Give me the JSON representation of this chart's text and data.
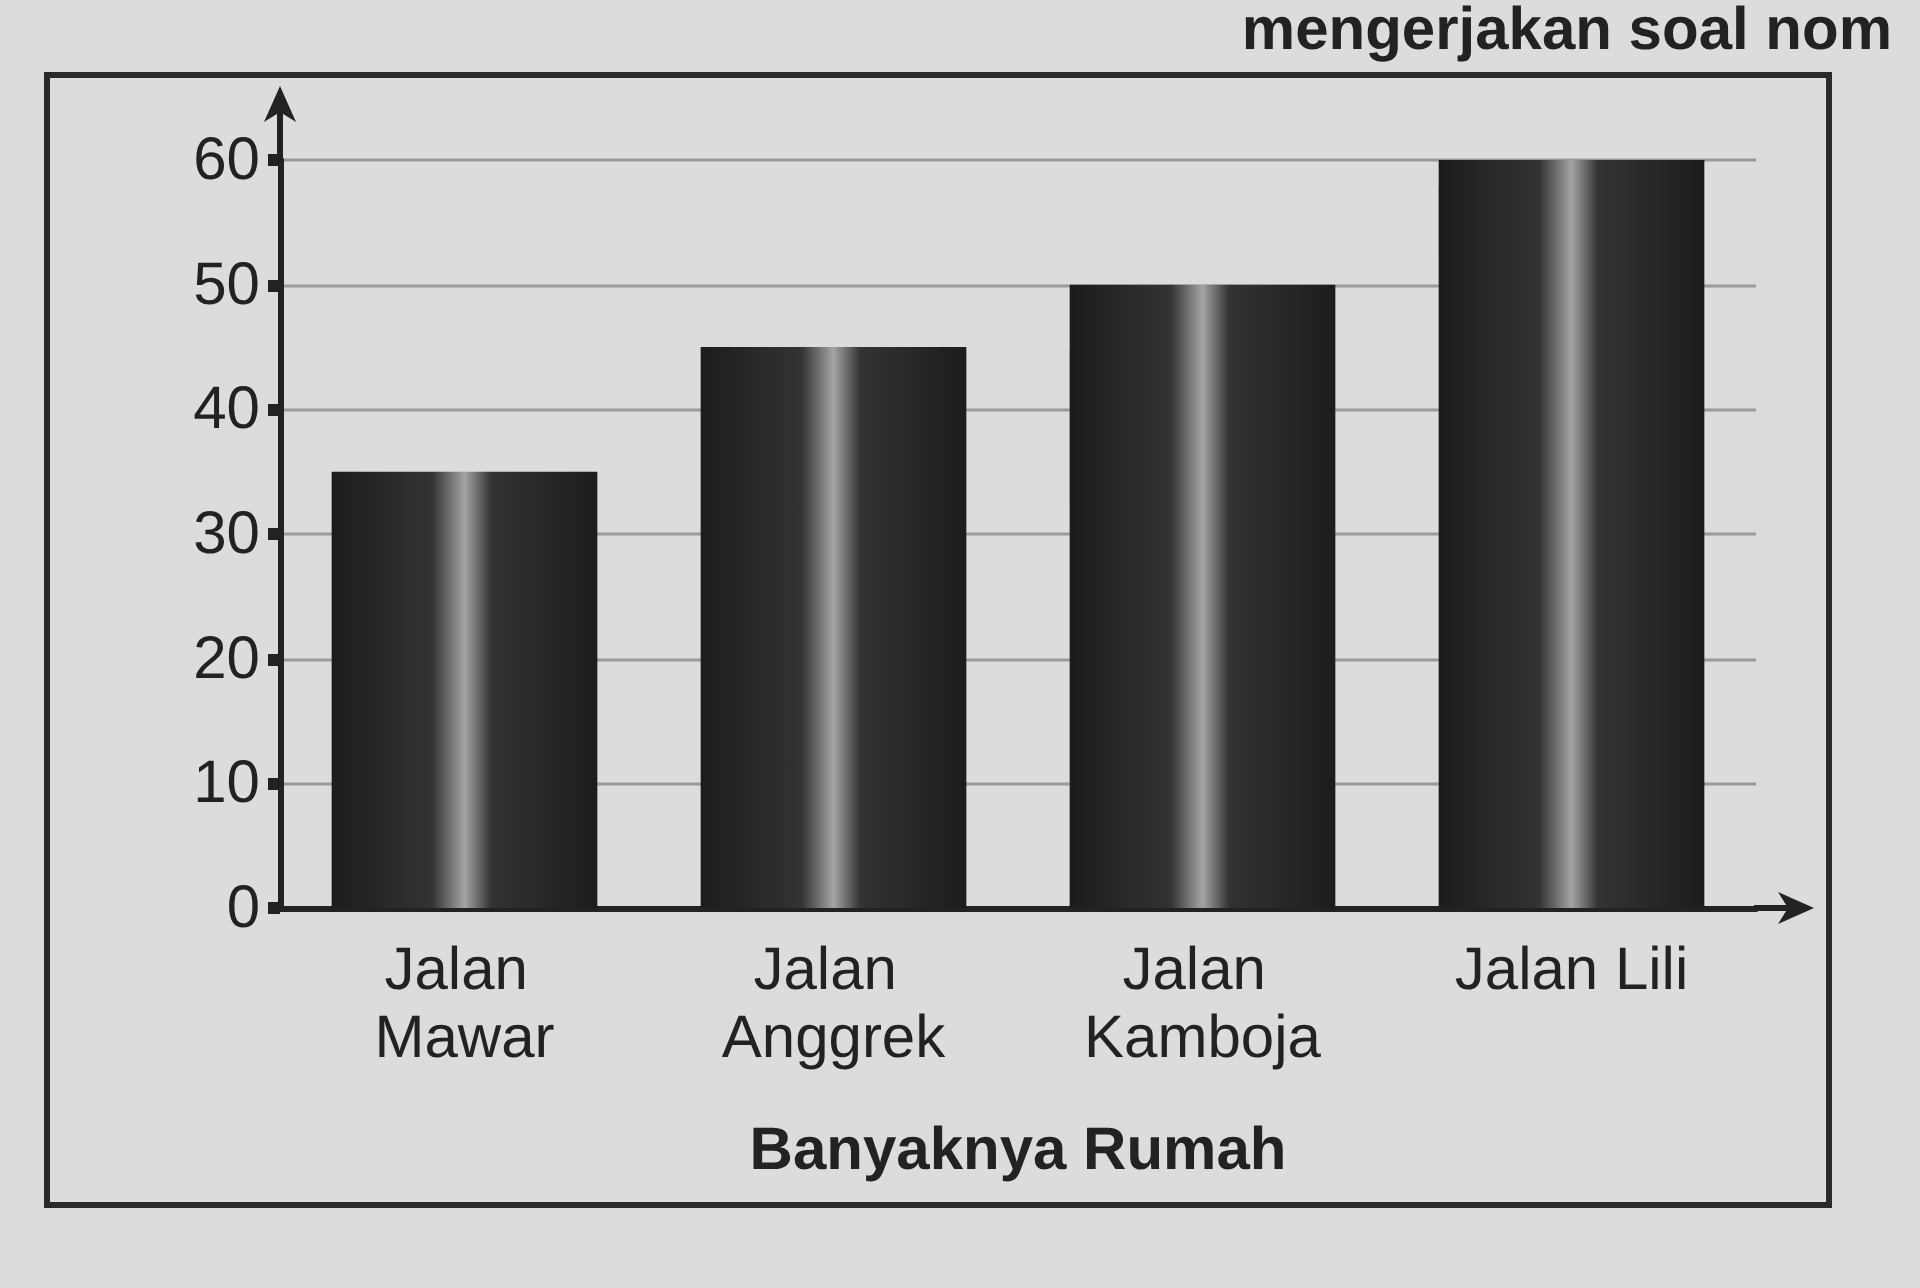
{
  "chart_data": {
    "type": "bar",
    "xlabel": "Banyaknya Rumah",
    "categories": [
      "Jalan Mawar",
      "Jalan Anggrek",
      "Jalan Kamboja",
      "Jalan Lili"
    ],
    "values": [
      35,
      45,
      50,
      60
    ],
    "color": "#1c1c1c",
    "ylim": [
      0,
      60
    ],
    "yticks": [
      0,
      10,
      20,
      30,
      40,
      50,
      60
    ],
    "grid": "y",
    "annotations": [
      "mengerjakan soal nom"
    ]
  }
}
